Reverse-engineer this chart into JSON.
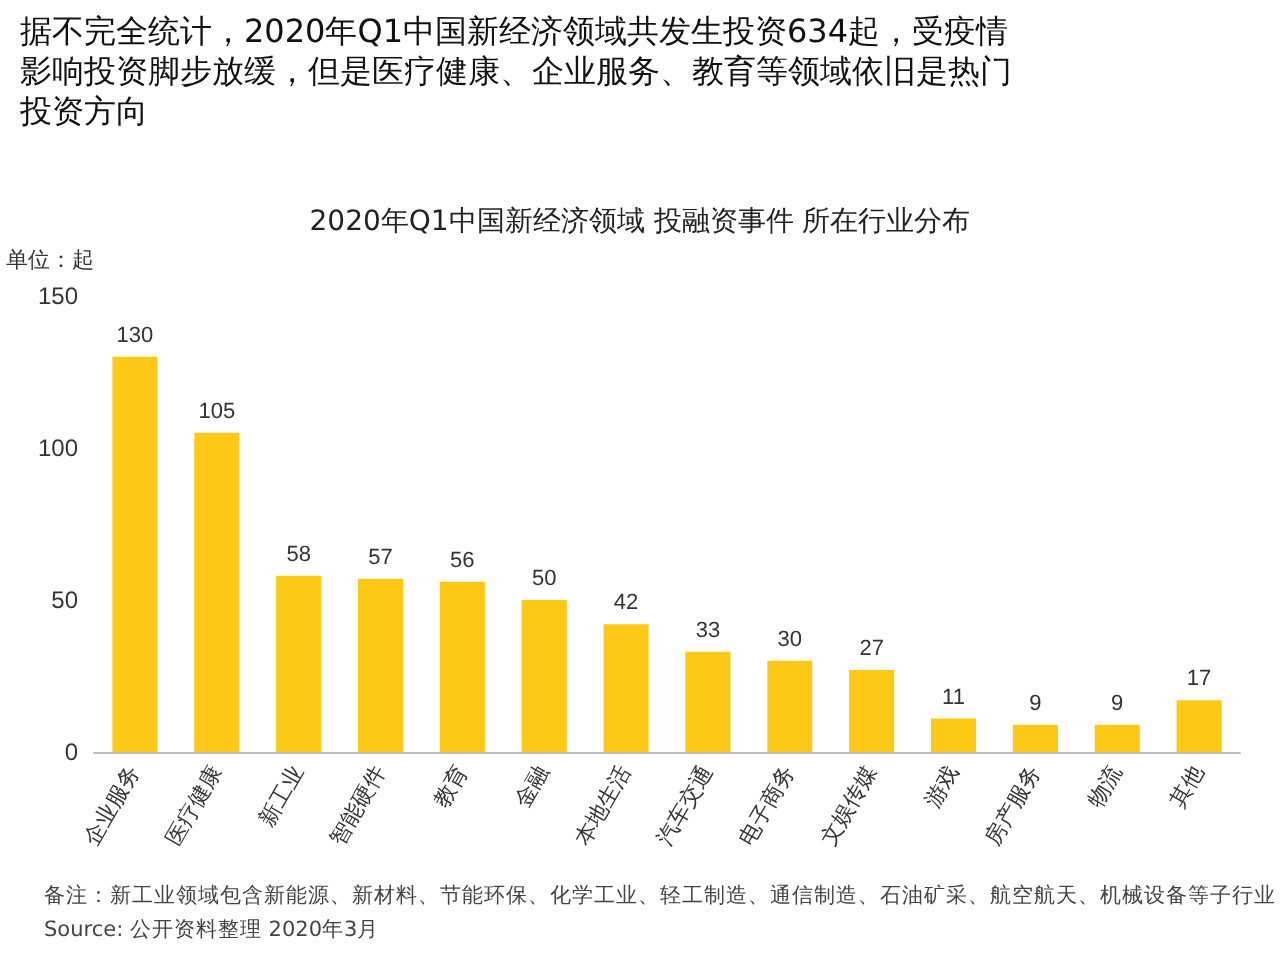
{
  "chart_data": {
    "type": "bar",
    "title": "据不完全统计，2020年Q1中国新经济领域共发生投资634起，受疫情影响投资脚步放缓，但是医疗健康、企业服务、教育等领域依旧是热门投资方向",
    "subtitle": "2020年Q1中国新经济领域 投融资事件 所在行业分布",
    "ylabel": "单位：起",
    "categories": [
      "企业服务",
      "医疗健康",
      "新工业",
      "智能硬件",
      "教育",
      "金融",
      "本地生活",
      "汽车交通",
      "电子商务",
      "文娱传媒",
      "游戏",
      "房产服务",
      "物流",
      "其他"
    ],
    "values": [
      130,
      105,
      58,
      57,
      56,
      50,
      42,
      33,
      30,
      27,
      11,
      9,
      9,
      17
    ],
    "color": "#fec916",
    "ylim": [
      0,
      150
    ],
    "yticks": [
      0,
      50,
      100,
      150
    ],
    "data_labels": true,
    "grid": false,
    "annotations": [
      "备注：新工业领域包含新能源、新材料、节能环保、化学工业、轻工制造、通信制造、石油矿采、航空航天、机械设备等子行业",
      "Source: 公开资料整理 2020年3月"
    ]
  }
}
